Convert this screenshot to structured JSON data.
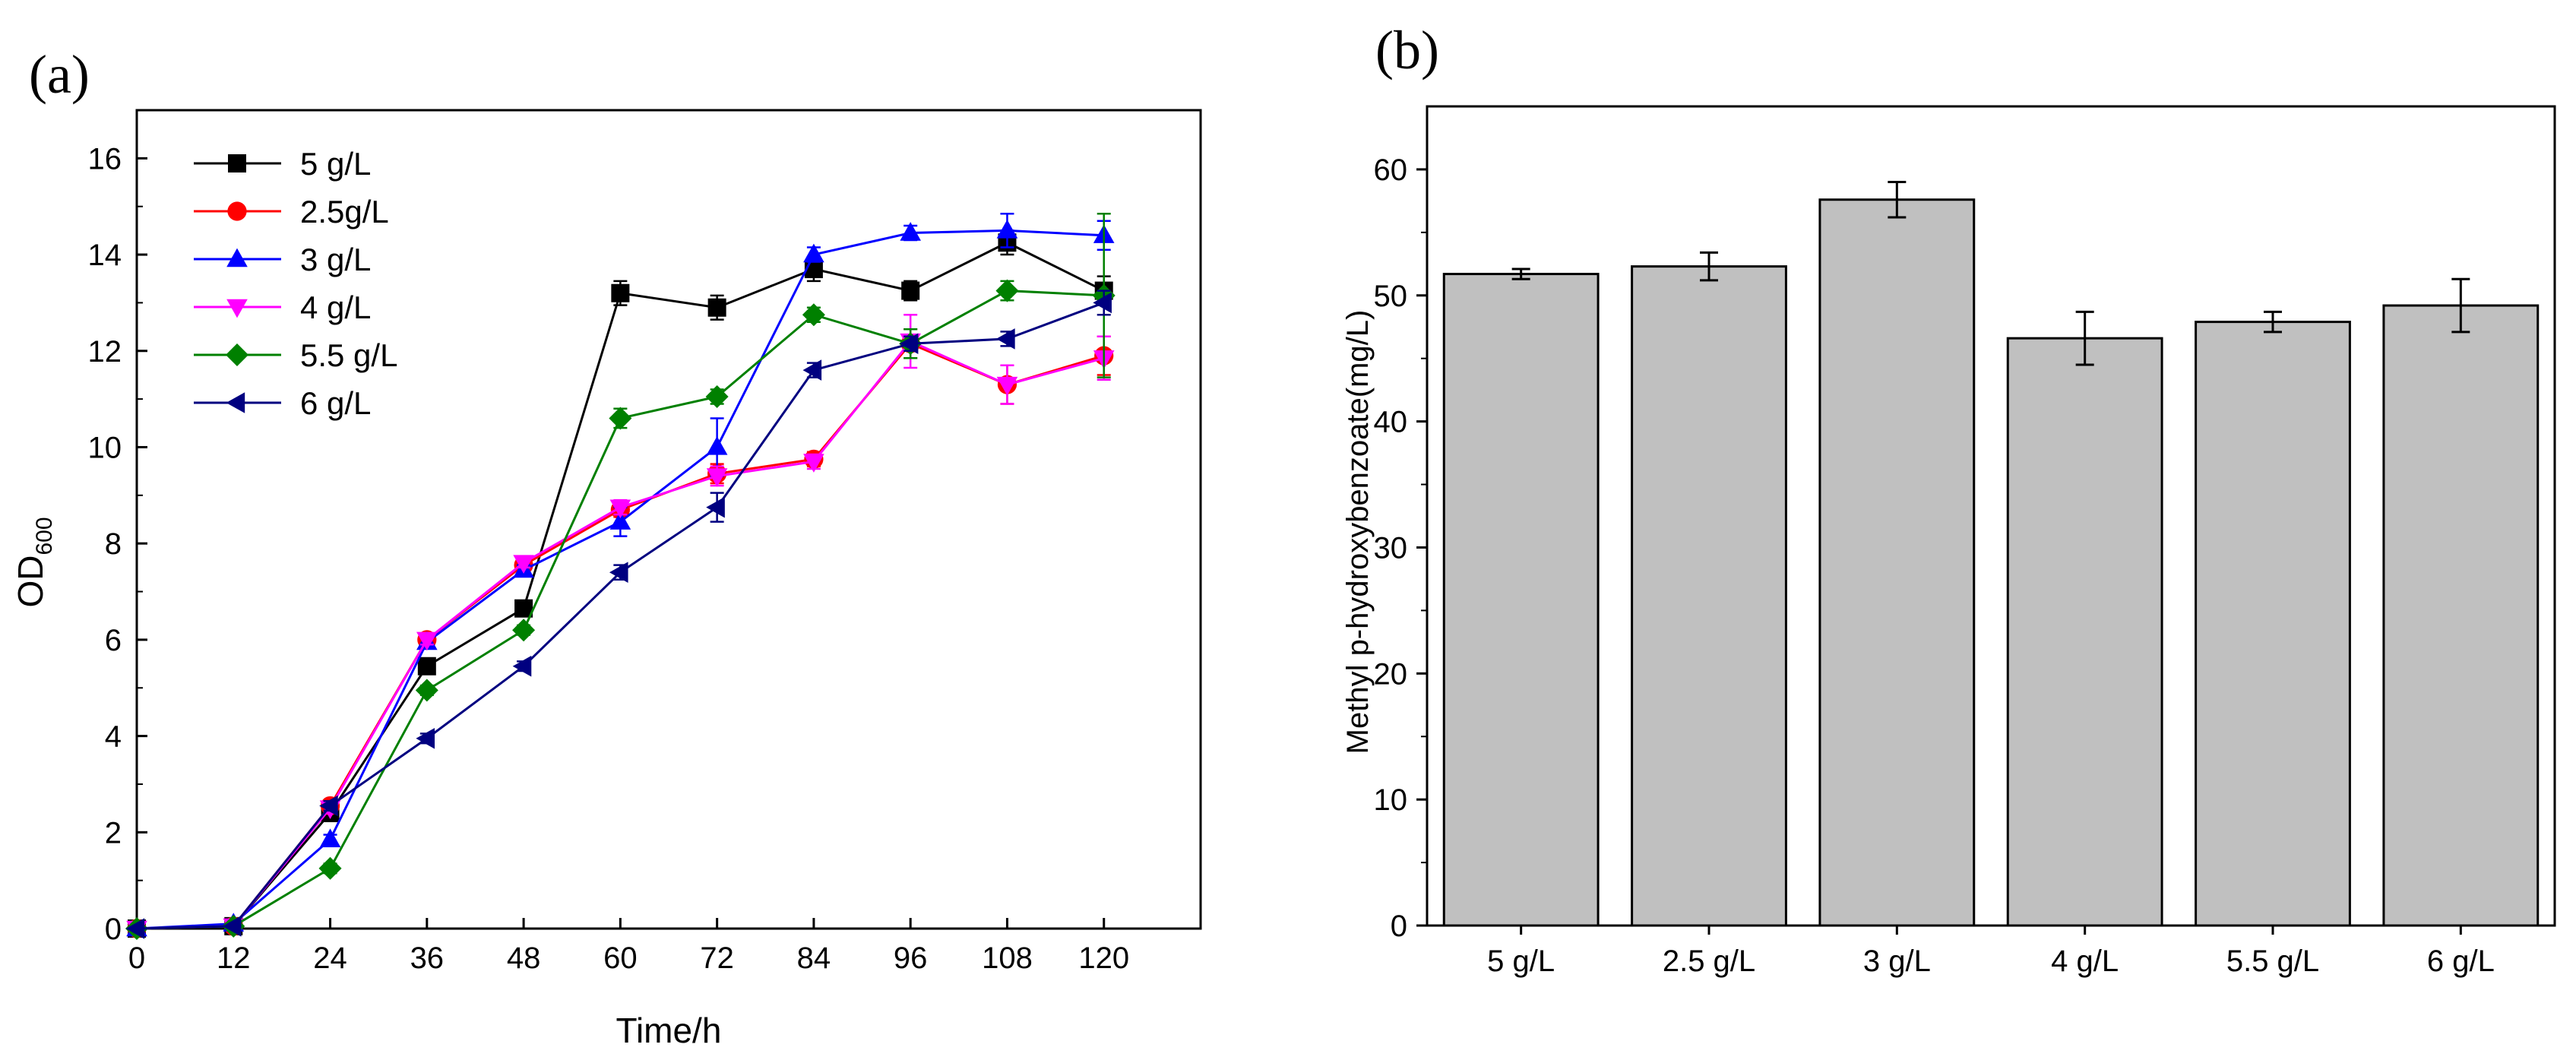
{
  "chart_data": [
    {
      "type": "line",
      "panel_label": "(a)",
      "xlabel": "Time/h",
      "ylabel": {
        "main": "OD",
        "sub": "600"
      },
      "xlim": [
        0,
        132
      ],
      "ylim": [
        0,
        17
      ],
      "x_ticks": [
        0,
        12,
        24,
        36,
        48,
        60,
        72,
        84,
        96,
        108,
        120
      ],
      "y_ticks": [
        0,
        2,
        4,
        6,
        8,
        10,
        12,
        14,
        16
      ],
      "legend_position": "top-left",
      "x": [
        0,
        12,
        24,
        36,
        48,
        60,
        72,
        84,
        96,
        108,
        120
      ],
      "series": [
        {
          "name": "5 g/L",
          "color": "#000000",
          "marker": "square",
          "values": [
            0,
            0.05,
            2.4,
            5.45,
            6.65,
            13.2,
            12.9,
            13.7,
            13.25,
            14.25,
            13.25
          ],
          "errors": [
            0,
            0,
            0.1,
            0.1,
            0.1,
            0.25,
            0.25,
            0.25,
            0.2,
            0.25,
            0.3
          ]
        },
        {
          "name": "2.5g/L",
          "color": "#ff0000",
          "marker": "circle",
          "values": [
            0,
            0.05,
            2.55,
            6.0,
            7.55,
            8.7,
            9.45,
            9.75,
            12.15,
            11.3,
            11.9
          ],
          "errors": [
            0,
            0,
            0.1,
            0.1,
            0.1,
            0.15,
            0.2,
            0.15,
            0.3,
            0.4,
            0.4
          ]
        },
        {
          "name": "3 g/L",
          "color": "#0000ff",
          "marker": "triangle-up",
          "values": [
            0,
            0.1,
            1.85,
            5.95,
            7.45,
            8.45,
            10.0,
            14.0,
            14.45,
            14.5,
            14.4
          ],
          "errors": [
            0,
            0,
            0.1,
            0.1,
            0.1,
            0.3,
            0.6,
            0.15,
            0.15,
            0.35,
            0.3
          ]
        },
        {
          "name": "4 g/L",
          "color": "#ff00ff",
          "marker": "triangle-down",
          "values": [
            0,
            0.05,
            2.5,
            6.0,
            7.6,
            8.75,
            9.4,
            9.7,
            12.2,
            11.3,
            11.85
          ],
          "errors": [
            0,
            0,
            0.1,
            0.1,
            0.1,
            0.15,
            0.2,
            0.15,
            0.55,
            0.4,
            0.45
          ]
        },
        {
          "name": "5.5 g/L",
          "color": "#008000",
          "marker": "diamond",
          "values": [
            0,
            0.05,
            1.25,
            4.95,
            6.2,
            10.6,
            11.05,
            12.75,
            12.15,
            13.25,
            13.15
          ],
          "errors": [
            0,
            0,
            0.1,
            0.1,
            0.1,
            0.2,
            0.15,
            0.15,
            0.3,
            0.2,
            1.7
          ]
        },
        {
          "name": "6 g/L",
          "color": "#000080",
          "marker": "triangle-left",
          "values": [
            0,
            0.05,
            2.55,
            3.95,
            5.45,
            7.4,
            8.75,
            11.6,
            12.15,
            12.25,
            13.0
          ],
          "errors": [
            0,
            0,
            0.1,
            0.1,
            0.1,
            0.15,
            0.3,
            0.15,
            0.15,
            0.15,
            0.25
          ]
        }
      ]
    },
    {
      "type": "bar",
      "panel_label": "(b)",
      "xlabel": "",
      "ylabel": "Methyl p-hydroxybenzoate(mg/L)",
      "ylim": [
        0,
        65
      ],
      "y_ticks": [
        0,
        10,
        20,
        30,
        40,
        50,
        60
      ],
      "bar_color": "#c0c0c0",
      "categories": [
        "5 g/L",
        "2.5 g/L",
        "3 g/L",
        "4 g/L",
        "5.5 g/L",
        "6 g/L"
      ],
      "values": [
        51.7,
        52.3,
        57.6,
        46.6,
        47.9,
        49.2
      ],
      "errors": [
        0.4,
        1.1,
        1.4,
        2.1,
        0.8,
        2.1
      ]
    }
  ]
}
